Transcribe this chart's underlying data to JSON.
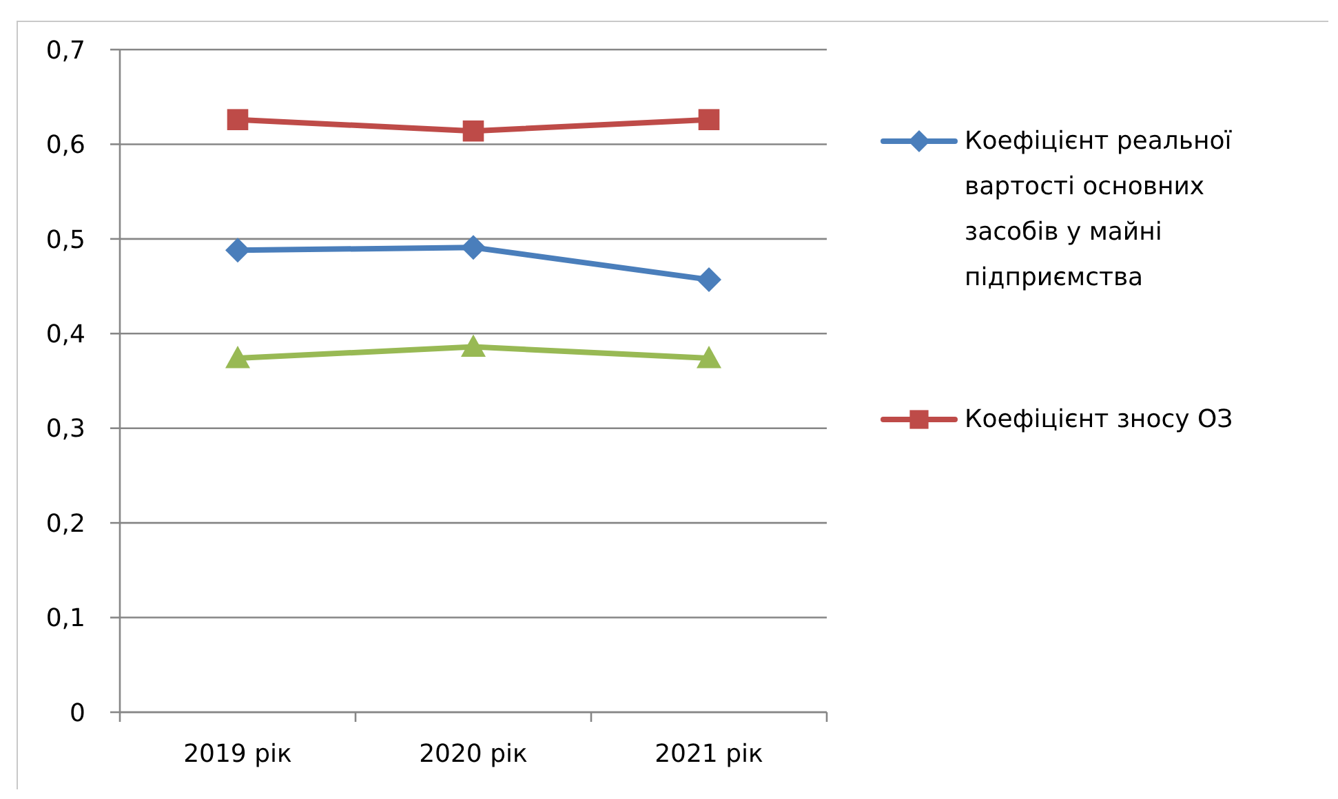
{
  "chart_data": {
    "type": "line",
    "categories": [
      "2019 рік",
      "2020 рік",
      "2021 рік"
    ],
    "series": [
      {
        "name": "Коефіцієнт реальної вартості основних засобів у майні підприємства",
        "color": "#4a7ebb",
        "marker": "diamond",
        "values": [
          0.488,
          0.491,
          0.457
        ]
      },
      {
        "name": "Коефіцієнт зносу ОЗ",
        "color": "#be4b48",
        "marker": "square",
        "values": [
          0.626,
          0.614,
          0.626
        ]
      },
      {
        "color": "#98b954",
        "marker": "triangle",
        "values": [
          0.374,
          0.386,
          0.374
        ]
      }
    ],
    "ylim": [
      0,
      0.7
    ],
    "yticks": [
      0,
      {
        "value": 0.1,
        "label": "0,1"
      },
      {
        "value": 0.2,
        "label": "0,2"
      },
      {
        "value": 0.3,
        "label": "0,3"
      },
      {
        "value": 0.4,
        "label": "0,4"
      },
      {
        "value": 0.5,
        "label": "0,5"
      },
      {
        "value": 0.6,
        "label": "0,6"
      },
      {
        "value": 0.7,
        "label": "0,7"
      }
    ],
    "grid": "y",
    "legend": "right",
    "line_style": "solid"
  }
}
